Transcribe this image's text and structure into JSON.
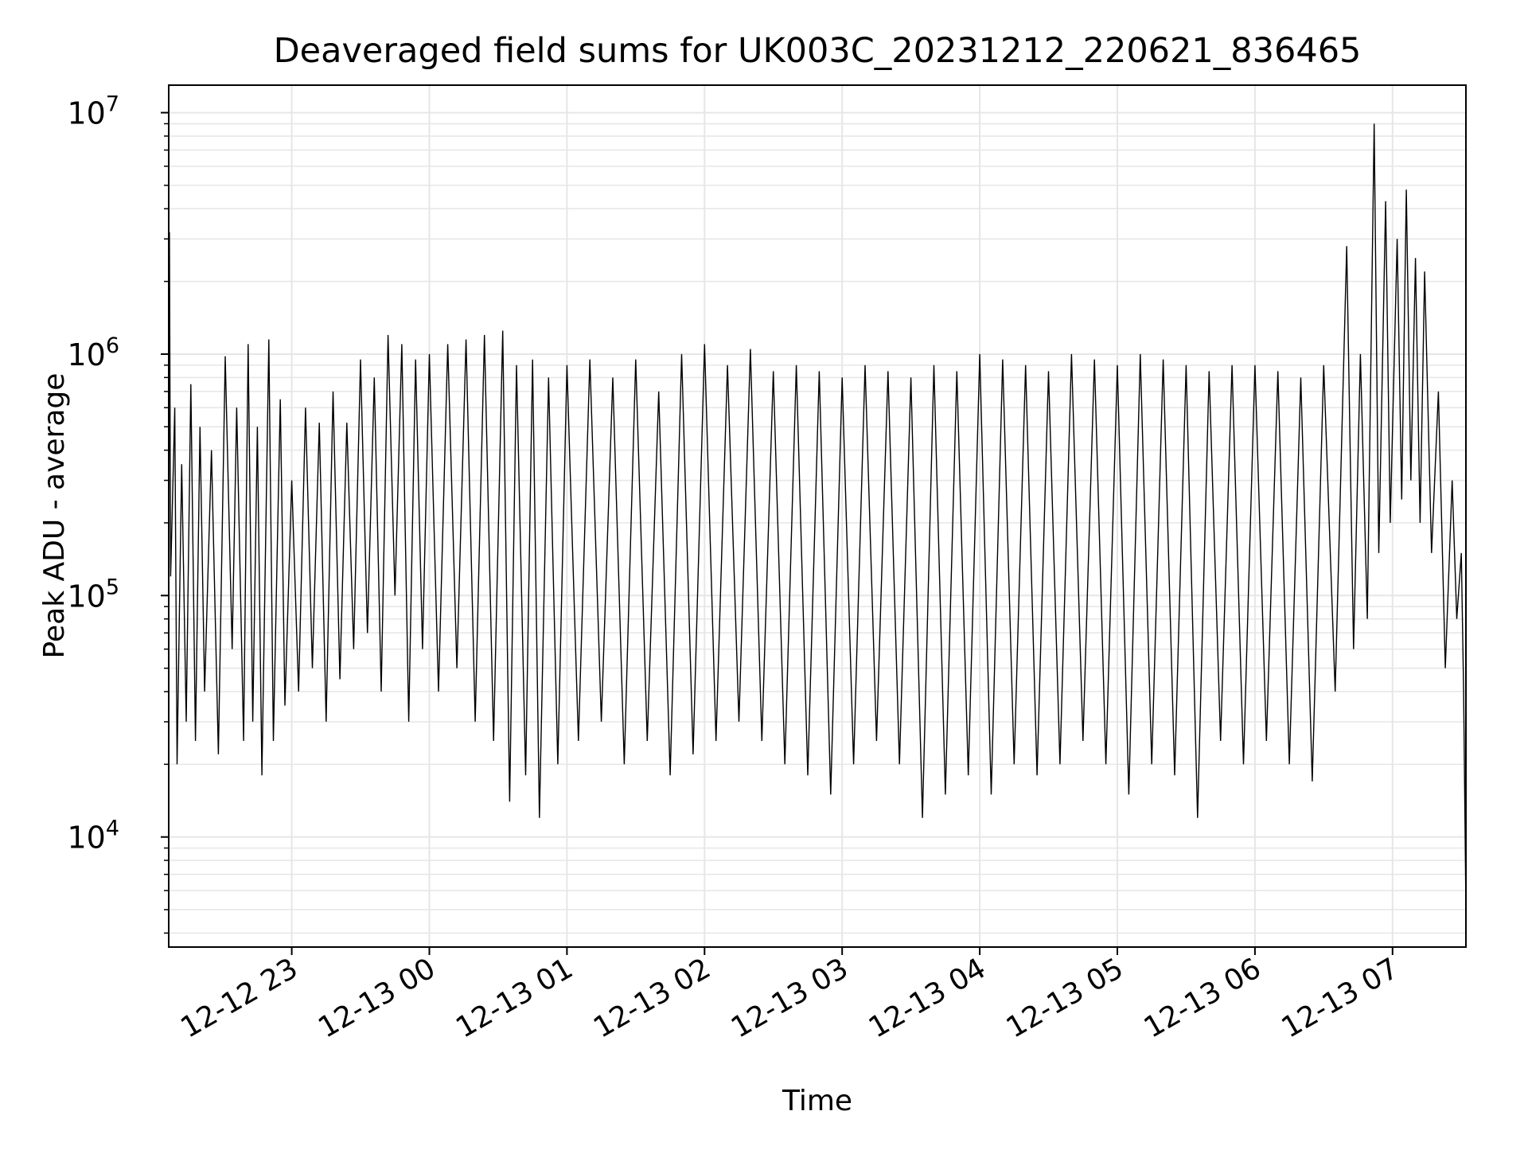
{
  "chart_data": {
    "type": "line",
    "title": "Deaveraged field sums for UK003C_20231212_220621_836465",
    "xlabel": "Time",
    "ylabel": "Peak ADU - average",
    "yscale": "log",
    "ylim": [
      3500,
      13000000
    ],
    "xlim": [
      "2023-12-12T22:06:21",
      "2023-12-13T07:32:00"
    ],
    "x_ticks": [
      {
        "value": "2023-12-12T23:00",
        "label": "12-12 23"
      },
      {
        "value": "2023-12-13T00:00",
        "label": "12-13 00"
      },
      {
        "value": "2023-12-13T01:00",
        "label": "12-13 01"
      },
      {
        "value": "2023-12-13T02:00",
        "label": "12-13 02"
      },
      {
        "value": "2023-12-13T03:00",
        "label": "12-13 03"
      },
      {
        "value": "2023-12-13T04:00",
        "label": "12-13 04"
      },
      {
        "value": "2023-12-13T05:00",
        "label": "12-13 05"
      },
      {
        "value": "2023-12-13T06:00",
        "label": "12-13 06"
      },
      {
        "value": "2023-12-13T07:00",
        "label": "12-13 07"
      }
    ],
    "y_ticks": [
      {
        "value": 10000,
        "base": "10",
        "exp": "4"
      },
      {
        "value": 100000,
        "base": "10",
        "exp": "5"
      },
      {
        "value": 1000000,
        "base": "10",
        "exp": "6"
      },
      {
        "value": 10000000,
        "base": "10",
        "exp": "7"
      }
    ],
    "grid": true,
    "series": [
      {
        "color": "#000000",
        "points": [
          [
            "2023-12-12T22:06:21",
            90000
          ],
          [
            "2023-12-12T22:06:40",
            3200000
          ],
          [
            "2023-12-12T22:07:10",
            120000
          ],
          [
            "2023-12-12T22:09",
            600000
          ],
          [
            "2023-12-12T22:10",
            20000
          ],
          [
            "2023-12-12T22:12",
            350000
          ],
          [
            "2023-12-12T22:14",
            30000
          ],
          [
            "2023-12-12T22:16",
            750000
          ],
          [
            "2023-12-12T22:18",
            25000
          ],
          [
            "2023-12-12T22:20",
            500000
          ],
          [
            "2023-12-12T22:22",
            40000
          ],
          [
            "2023-12-12T22:25",
            400000
          ],
          [
            "2023-12-12T22:28",
            22000
          ],
          [
            "2023-12-12T22:31",
            980000
          ],
          [
            "2023-12-12T22:34",
            60000
          ],
          [
            "2023-12-12T22:36",
            600000
          ],
          [
            "2023-12-12T22:39",
            25000
          ],
          [
            "2023-12-12T22:41",
            1100000
          ],
          [
            "2023-12-12T22:43",
            30000
          ],
          [
            "2023-12-12T22:45",
            500000
          ],
          [
            "2023-12-12T22:47",
            18000
          ],
          [
            "2023-12-12T22:50",
            1150000
          ],
          [
            "2023-12-12T22:52",
            25000
          ],
          [
            "2023-12-12T22:55",
            650000
          ],
          [
            "2023-12-12T22:57",
            35000
          ],
          [
            "2023-12-12T23:00",
            300000
          ],
          [
            "2023-12-12T23:03",
            40000
          ],
          [
            "2023-12-12T23:06",
            600000
          ],
          [
            "2023-12-12T23:09",
            50000
          ],
          [
            "2023-12-12T23:12",
            520000
          ],
          [
            "2023-12-12T23:15",
            30000
          ],
          [
            "2023-12-12T23:18",
            700000
          ],
          [
            "2023-12-12T23:21",
            45000
          ],
          [
            "2023-12-12T23:24",
            520000
          ],
          [
            "2023-12-12T23:27",
            60000
          ],
          [
            "2023-12-12T23:30",
            950000
          ],
          [
            "2023-12-12T23:33",
            70000
          ],
          [
            "2023-12-12T23:36",
            800000
          ],
          [
            "2023-12-12T23:39",
            40000
          ],
          [
            "2023-12-12T23:42",
            1200000
          ],
          [
            "2023-12-12T23:45",
            100000
          ],
          [
            "2023-12-12T23:48",
            1100000
          ],
          [
            "2023-12-12T23:51",
            30000
          ],
          [
            "2023-12-12T23:54",
            950000
          ],
          [
            "2023-12-12T23:57",
            60000
          ],
          [
            "2023-12-13T00:00",
            1000000
          ],
          [
            "2023-12-13T00:04",
            40000
          ],
          [
            "2023-12-13T00:08",
            1100000
          ],
          [
            "2023-12-13T00:12",
            50000
          ],
          [
            "2023-12-13T00:16",
            1150000
          ],
          [
            "2023-12-13T00:20",
            30000
          ],
          [
            "2023-12-13T00:24",
            1200000
          ],
          [
            "2023-12-13T00:28",
            25000
          ],
          [
            "2023-12-13T00:32",
            1250000
          ],
          [
            "2023-12-13T00:35",
            14000
          ],
          [
            "2023-12-13T00:38",
            900000
          ],
          [
            "2023-12-13T00:42",
            18000
          ],
          [
            "2023-12-13T00:45",
            950000
          ],
          [
            "2023-12-13T00:48",
            12000
          ],
          [
            "2023-12-13T00:52",
            800000
          ],
          [
            "2023-12-13T00:56",
            20000
          ],
          [
            "2023-12-13T01:00",
            900000
          ],
          [
            "2023-12-13T01:05",
            25000
          ],
          [
            "2023-12-13T01:10",
            950000
          ],
          [
            "2023-12-13T01:15",
            30000
          ],
          [
            "2023-12-13T01:20",
            800000
          ],
          [
            "2023-12-13T01:25",
            20000
          ],
          [
            "2023-12-13T01:30",
            950000
          ],
          [
            "2023-12-13T01:35",
            25000
          ],
          [
            "2023-12-13T01:40",
            700000
          ],
          [
            "2023-12-13T01:45",
            18000
          ],
          [
            "2023-12-13T01:50",
            1000000
          ],
          [
            "2023-12-13T01:55",
            22000
          ],
          [
            "2023-12-13T02:00",
            1100000
          ],
          [
            "2023-12-13T02:05",
            25000
          ],
          [
            "2023-12-13T02:10",
            900000
          ],
          [
            "2023-12-13T02:15",
            30000
          ],
          [
            "2023-12-13T02:20",
            1050000
          ],
          [
            "2023-12-13T02:25",
            25000
          ],
          [
            "2023-12-13T02:30",
            850000
          ],
          [
            "2023-12-13T02:35",
            20000
          ],
          [
            "2023-12-13T02:40",
            900000
          ],
          [
            "2023-12-13T02:45",
            18000
          ],
          [
            "2023-12-13T02:50",
            850000
          ],
          [
            "2023-12-13T02:55",
            15000
          ],
          [
            "2023-12-13T03:00",
            800000
          ],
          [
            "2023-12-13T03:05",
            20000
          ],
          [
            "2023-12-13T03:10",
            900000
          ],
          [
            "2023-12-13T03:15",
            25000
          ],
          [
            "2023-12-13T03:20",
            850000
          ],
          [
            "2023-12-13T03:25",
            20000
          ],
          [
            "2023-12-13T03:30",
            800000
          ],
          [
            "2023-12-13T03:35",
            12000
          ],
          [
            "2023-12-13T03:40",
            900000
          ],
          [
            "2023-12-13T03:45",
            15000
          ],
          [
            "2023-12-13T03:50",
            850000
          ],
          [
            "2023-12-13T03:55",
            18000
          ],
          [
            "2023-12-13T04:00",
            1000000
          ],
          [
            "2023-12-13T04:05",
            15000
          ],
          [
            "2023-12-13T04:10",
            950000
          ],
          [
            "2023-12-13T04:15",
            20000
          ],
          [
            "2023-12-13T04:20",
            900000
          ],
          [
            "2023-12-13T04:25",
            18000
          ],
          [
            "2023-12-13T04:30",
            850000
          ],
          [
            "2023-12-13T04:35",
            20000
          ],
          [
            "2023-12-13T04:40",
            1000000
          ],
          [
            "2023-12-13T04:45",
            25000
          ],
          [
            "2023-12-13T04:50",
            950000
          ],
          [
            "2023-12-13T04:55",
            20000
          ],
          [
            "2023-12-13T05:00",
            900000
          ],
          [
            "2023-12-13T05:05",
            15000
          ],
          [
            "2023-12-13T05:10",
            1000000
          ],
          [
            "2023-12-13T05:15",
            20000
          ],
          [
            "2023-12-13T05:20",
            950000
          ],
          [
            "2023-12-13T05:25",
            18000
          ],
          [
            "2023-12-13T05:30",
            900000
          ],
          [
            "2023-12-13T05:35",
            12000
          ],
          [
            "2023-12-13T05:40",
            850000
          ],
          [
            "2023-12-13T05:45",
            25000
          ],
          [
            "2023-12-13T05:50",
            900000
          ],
          [
            "2023-12-13T05:55",
            20000
          ],
          [
            "2023-12-13T06:00",
            900000
          ],
          [
            "2023-12-13T06:05",
            25000
          ],
          [
            "2023-12-13T06:10",
            850000
          ],
          [
            "2023-12-13T06:15",
            20000
          ],
          [
            "2023-12-13T06:20",
            800000
          ],
          [
            "2023-12-13T06:25",
            17000
          ],
          [
            "2023-12-13T06:30",
            900000
          ],
          [
            "2023-12-13T06:35",
            40000
          ],
          [
            "2023-12-13T06:40",
            2800000
          ],
          [
            "2023-12-13T06:43",
            60000
          ],
          [
            "2023-12-13T06:46",
            1000000
          ],
          [
            "2023-12-13T06:49",
            80000
          ],
          [
            "2023-12-13T06:52",
            9000000
          ],
          [
            "2023-12-13T06:54",
            150000
          ],
          [
            "2023-12-13T06:57",
            4300000
          ],
          [
            "2023-12-13T06:59",
            200000
          ],
          [
            "2023-12-13T07:02",
            3000000
          ],
          [
            "2023-12-13T07:04",
            250000
          ],
          [
            "2023-12-13T07:06",
            4800000
          ],
          [
            "2023-12-13T07:08",
            300000
          ],
          [
            "2023-12-13T07:10",
            2500000
          ],
          [
            "2023-12-13T07:12",
            200000
          ],
          [
            "2023-12-13T07:14",
            2200000
          ],
          [
            "2023-12-13T07:17",
            150000
          ],
          [
            "2023-12-13T07:20",
            700000
          ],
          [
            "2023-12-13T07:23",
            50000
          ],
          [
            "2023-12-13T07:26",
            300000
          ],
          [
            "2023-12-13T07:28",
            80000
          ],
          [
            "2023-12-13T07:30",
            150000
          ],
          [
            "2023-12-13T07:31",
            40000
          ],
          [
            "2023-12-13T07:32:00",
            5000
          ]
        ]
      }
    ]
  }
}
